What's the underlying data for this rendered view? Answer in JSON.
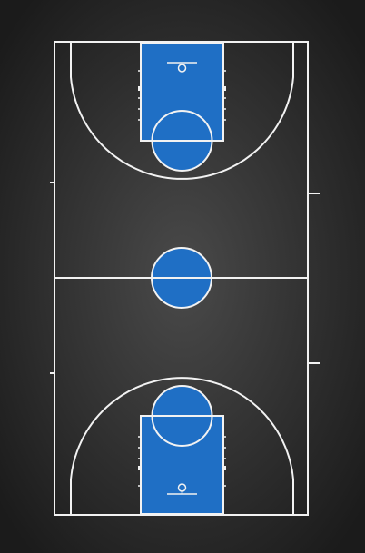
{
  "court": {
    "background_center": "#4a4a4a",
    "background_edge": "#1b1b1b",
    "floor": "#2a2a2a",
    "paint": "#1f6fc5",
    "line": "#f2f2f2"
  }
}
